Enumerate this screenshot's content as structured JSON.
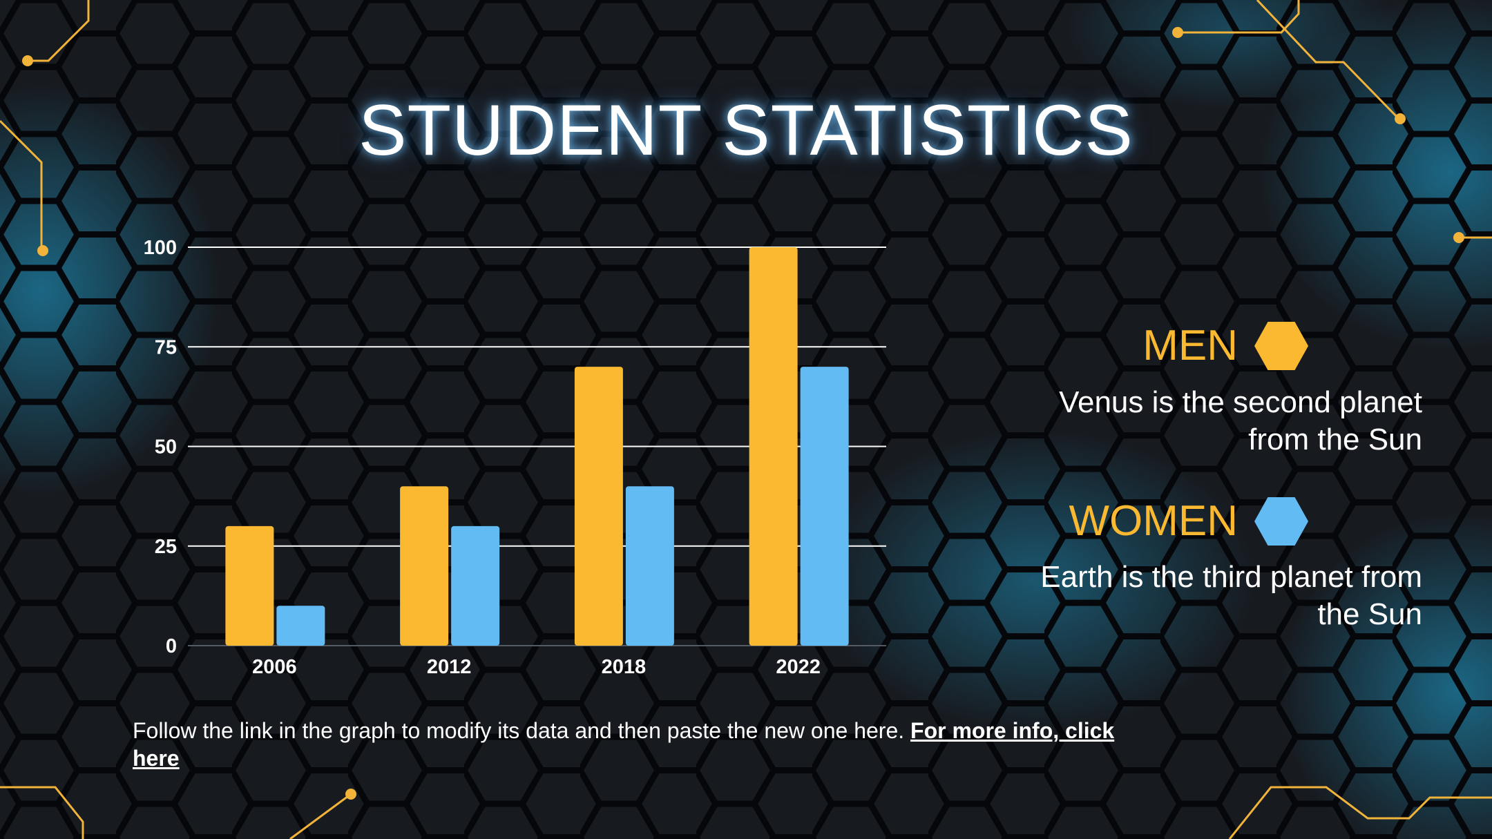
{
  "slide": {
    "title": "STUDENT STATISTICS",
    "footer": {
      "text": "Follow the link in the graph to modify its data and then paste the new one here. ",
      "link_text": "For more info, click here"
    }
  },
  "legend": [
    {
      "label": "MEN",
      "description": "Venus is the second planet from the Sun",
      "color": "#fbb932"
    },
    {
      "label": "WOMEN",
      "description": "Earth is the third planet from the Sun",
      "color": "#63bbf4"
    }
  ],
  "colors": {
    "accent": "#fbb932",
    "secondary": "#63bbf4",
    "background": "#15181d",
    "text": "#ffffff"
  },
  "chart_data": {
    "type": "bar",
    "categories": [
      "2006",
      "2012",
      "2018",
      "2022"
    ],
    "series": [
      {
        "name": "MEN",
        "values": [
          30,
          40,
          70,
          100
        ],
        "color": "#fbb932"
      },
      {
        "name": "WOMEN",
        "values": [
          10,
          30,
          40,
          70
        ],
        "color": "#63bbf4"
      }
    ],
    "ylim": [
      0,
      100
    ],
    "yticks": [
      0,
      25,
      50,
      75,
      100
    ],
    "grid": true,
    "legend_position": "right"
  }
}
